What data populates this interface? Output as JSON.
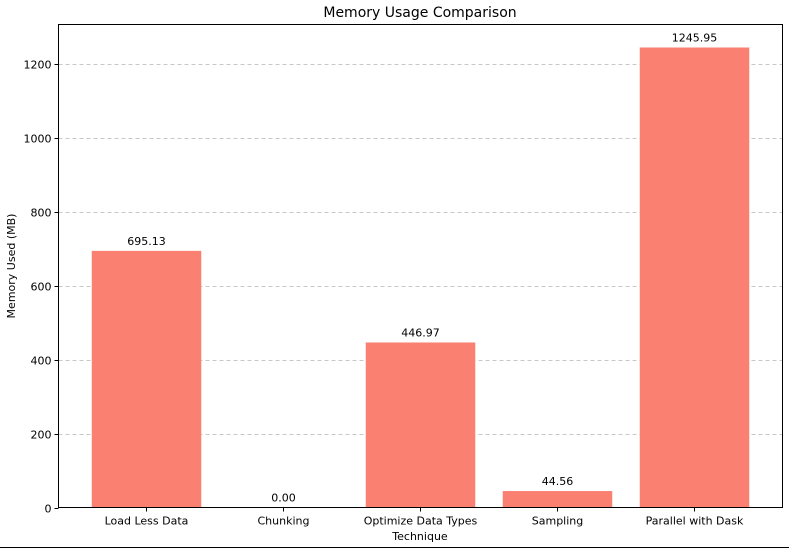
{
  "chart_data": {
    "type": "bar",
    "title": "Memory Usage Comparison",
    "xlabel": "Technique",
    "ylabel": "Memory Used (MB)",
    "categories": [
      "Load Less Data",
      "Chunking",
      "Optimize Data Types",
      "Sampling",
      "Parallel with Dask"
    ],
    "values": [
      695.13,
      0.0,
      446.97,
      44.56,
      1245.95
    ],
    "value_labels": [
      "695.13",
      "0.00",
      "446.97",
      "44.56",
      "1245.95"
    ],
    "ylim": [
      0,
      1308.25
    ],
    "yticks": [
      0,
      200,
      400,
      600,
      800,
      1000,
      1200
    ],
    "grid": "y-dashed",
    "bar_color": "#fa8072",
    "grid_color": "#c8c8c8"
  }
}
